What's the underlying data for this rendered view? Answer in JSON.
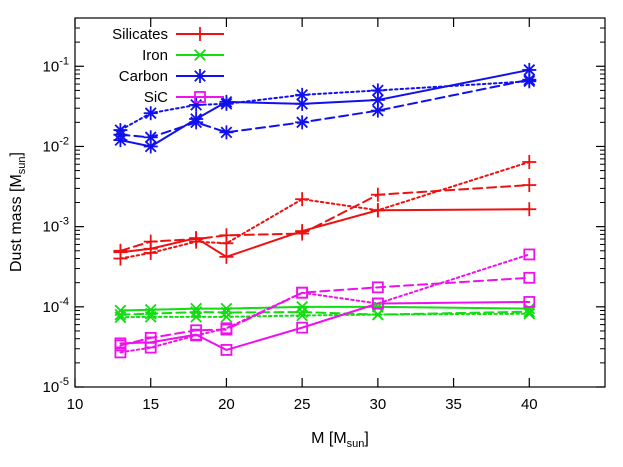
{
  "chart_data": {
    "type": "line",
    "title": "",
    "xlabel": {
      "main": "M [M",
      "sub": "sun",
      "close": "]"
    },
    "ylabel": {
      "main": "Dust mass [M",
      "sub": "sun",
      "close": "]"
    },
    "xlim": [
      10,
      45
    ],
    "ylim": [
      1e-05,
      0.4
    ],
    "yscale": "log",
    "x_ticks": [
      10,
      15,
      20,
      25,
      30,
      35,
      40
    ],
    "x_tick_labels": [
      "10",
      "15",
      "20",
      "25",
      "30",
      "35",
      "40"
    ],
    "y_ticks": [
      1e-05,
      0.0001,
      0.001,
      0.01,
      0.1
    ],
    "y_tick_labels": [
      {
        "base": "10",
        "exp": "-5"
      },
      {
        "base": "10",
        "exp": "-4"
      },
      {
        "base": "10",
        "exp": "-3"
      },
      {
        "base": "10",
        "exp": "-2"
      },
      {
        "base": "10",
        "exp": "-1"
      }
    ],
    "grid": false,
    "legend_position": "top-left",
    "masses": [
      13,
      15,
      18,
      20,
      25,
      30,
      40
    ],
    "species": [
      {
        "name": "Silicates",
        "color": "#ee1111",
        "marker": "plus",
        "runs": [
          {
            "style": "solid",
            "values": [
              0.00048,
              0.00053,
              0.00072,
              0.00042,
              0.00088,
              0.0016,
              0.00165
            ]
          },
          {
            "style": "dashed",
            "values": [
              0.0005,
              0.00065,
              0.0007,
              0.00078,
              0.00082,
              0.0025,
              0.0033
            ]
          },
          {
            "style": "dotted",
            "values": [
              0.0004,
              0.00047,
              0.00065,
              0.00062,
              0.0022,
              0.0016,
              0.0064
            ]
          }
        ]
      },
      {
        "name": "Iron",
        "color": "#11dd11",
        "marker": "cross",
        "runs": [
          {
            "style": "solid",
            "values": [
              9e-05,
              9.2e-05,
              9.5e-05,
              9.5e-05,
              0.0001,
              0.0001,
              9.5e-05
            ]
          },
          {
            "style": "dashed",
            "values": [
              8e-05,
              8.2e-05,
              8.6e-05,
              8.5e-05,
              8.6e-05,
              8e-05,
              8.7e-05
            ]
          },
          {
            "style": "dotted",
            "values": [
              7.4e-05,
              7.5e-05,
              7.5e-05,
              7.5e-05,
              7.8e-05,
              8e-05,
              8.2e-05
            ]
          }
        ]
      },
      {
        "name": "Carbon",
        "color": "#1111ee",
        "marker": "star",
        "runs": [
          {
            "style": "solid",
            "values": [
              0.012,
              0.01,
              0.022,
              0.036,
              0.034,
              0.038,
              0.09
            ]
          },
          {
            "style": "dashed",
            "values": [
              0.014,
              0.013,
              0.02,
              0.015,
              0.02,
              0.028,
              0.068
            ]
          },
          {
            "style": "dotted",
            "values": [
              0.016,
              0.026,
              0.033,
              0.034,
              0.044,
              0.05,
              0.065
            ]
          }
        ]
      },
      {
        "name": "SiC",
        "color": "#ee11ee",
        "marker": "square",
        "runs": [
          {
            "style": "solid",
            "values": [
              3.5e-05,
              3.6e-05,
              4.5e-05,
              2.9e-05,
              5.5e-05,
              0.00011,
              0.000115
            ]
          },
          {
            "style": "dashed",
            "values": [
              3.3e-05,
              4.1e-05,
              5.1e-05,
              5.2e-05,
              0.00015,
              0.000175,
              0.00023
            ]
          },
          {
            "style": "dotted",
            "values": [
              2.7e-05,
              3.1e-05,
              4.4e-05,
              5.4e-05,
              0.00015,
              0.00011,
              0.00045
            ]
          }
        ]
      }
    ]
  }
}
